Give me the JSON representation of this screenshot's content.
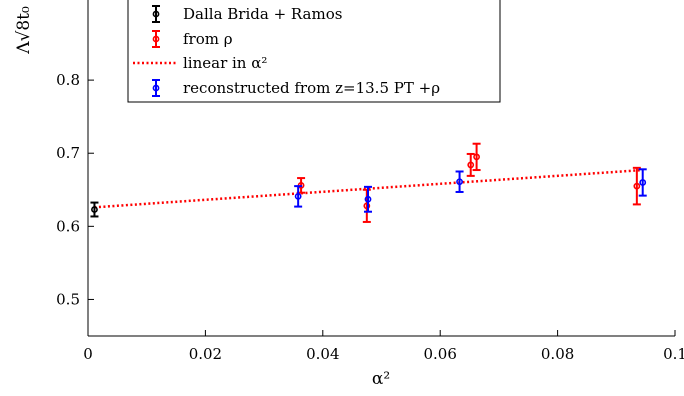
{
  "chart_data": {
    "type": "scatter",
    "title": "",
    "xlabel": "α²",
    "ylabel": "Λ√8t₀",
    "xlim": [
      0,
      0.1
    ],
    "ylim": [
      0.45,
      0.9
    ],
    "x_ticks": [
      0,
      0.02,
      0.04,
      0.06,
      0.08,
      0.1
    ],
    "x_tick_labels": [
      "0",
      "0.02",
      "0.04",
      "0.06",
      "0.08",
      "0.1"
    ],
    "y_ticks": [
      0.5,
      0.6,
      0.7,
      0.8
    ],
    "y_tick_labels": [
      "0.5",
      "0.6",
      "0.7",
      "0.8"
    ],
    "grid": false,
    "legend_placement": "top-left",
    "series": [
      {
        "name": "Dalla Brida + Ramos",
        "color": "#000000",
        "style": "errorbar",
        "points": [
          {
            "x": 0.0011,
            "y": 0.623,
            "err": 0.0095
          }
        ]
      },
      {
        "name": "from ρ",
        "color": "#ff0000",
        "style": "errorbar",
        "points": [
          {
            "x": 0.0363,
            "y": 0.656,
            "err": 0.01
          },
          {
            "x": 0.0475,
            "y": 0.628,
            "err": 0.022
          },
          {
            "x": 0.0652,
            "y": 0.684,
            "err": 0.015
          },
          {
            "x": 0.0662,
            "y": 0.695,
            "err": 0.018
          },
          {
            "x": 0.0935,
            "y": 0.655,
            "err": 0.025
          }
        ]
      },
      {
        "name": "linear in α²",
        "color": "#ff0000",
        "style": "dotted-line",
        "x": [
          0.0011,
          0.0945
        ],
        "y": [
          0.626,
          0.677
        ]
      },
      {
        "name": "reconstructed from z=13.5 PT +ρ",
        "color": "#0000ff",
        "style": "errorbar",
        "points": [
          {
            "x": 0.0358,
            "y": 0.641,
            "err": 0.014
          },
          {
            "x": 0.0477,
            "y": 0.637,
            "err": 0.017
          },
          {
            "x": 0.0633,
            "y": 0.661,
            "err": 0.014
          },
          {
            "x": 0.0945,
            "y": 0.66,
            "err": 0.018
          }
        ]
      }
    ]
  }
}
